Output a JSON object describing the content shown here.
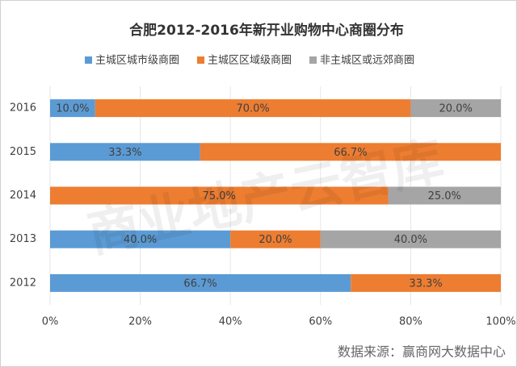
{
  "chart_data": {
    "type": "stacked-bar-horizontal",
    "title": "合肥2012-2016年新开业购物中心商圈分布",
    "categories": [
      "2016",
      "2015",
      "2014",
      "2013",
      "2012"
    ],
    "series": [
      {
        "name": "主城区城市级商圈",
        "color": "#5b9bd5",
        "values": [
          10,
          33.3,
          0,
          40,
          66.7
        ],
        "value_labels": [
          "10.0%",
          "33.3%",
          null,
          "40.0%",
          "66.7%"
        ]
      },
      {
        "name": "主城区区域级商圈",
        "color": "#ed7d31",
        "values": [
          70,
          66.7,
          75,
          20,
          33.3
        ],
        "value_labels": [
          "70.0%",
          "66.7%",
          "75.0%",
          "20.0%",
          "33.3%"
        ]
      },
      {
        "name": "非主城区或远郊商圈",
        "color": "#a5a5a5",
        "values": [
          20,
          0,
          25,
          40,
          0
        ],
        "value_labels": [
          "20.0%",
          null,
          "25.0%",
          "40.0%",
          null
        ]
      }
    ],
    "xlim": [
      0,
      100
    ],
    "xticks": [
      {
        "value": 0,
        "label": "0%"
      },
      {
        "value": 20,
        "label": "20%"
      },
      {
        "value": 40,
        "label": "40%"
      },
      {
        "value": 60,
        "label": "60%"
      },
      {
        "value": 80,
        "label": "80%"
      },
      {
        "value": 100,
        "label": "100%"
      }
    ],
    "grid": true,
    "legend": "top",
    "source": "数据来源：赢商网大数据中心",
    "watermark": "商业地产云智库"
  }
}
